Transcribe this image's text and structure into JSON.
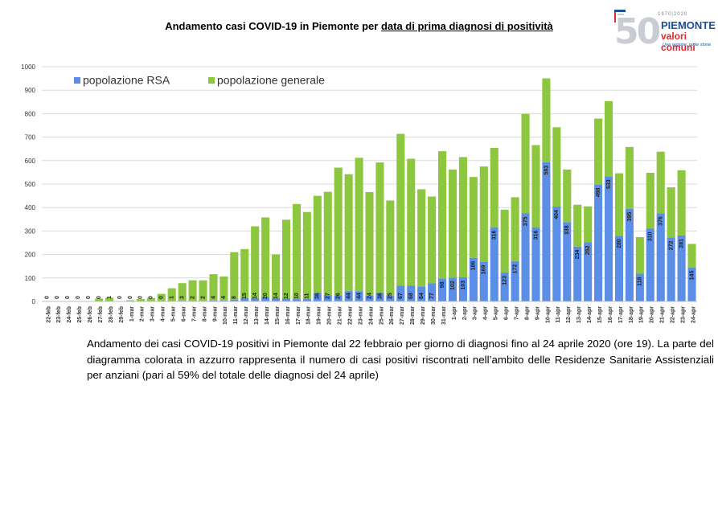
{
  "header": {
    "title_part1": "Andamento casi COVID-19 in Piemonte per ",
    "title_part2": "data di prima diagnosi di positività"
  },
  "logo": {
    "number": "50",
    "years": "1970|2020",
    "line1": "PIEMONTE",
    "line2": "valori comuni",
    "line3": "Una regione, tante storie"
  },
  "caption": "Andamento dei casi COVID-19 positivi in Piemonte dal 22 febbraio per giorno di diagnosi fino al 24 aprile 2020 (ore 19). La parte del diagramma colorata in azzurro rappresenta il numero di casi positivi riscontrati nell’ambito delle Residenze Sanitarie Assistenziali per anziani (pari al 59% del totale delle diagnosi del 24 aprile)",
  "chart_data": {
    "type": "bar",
    "stacked": true,
    "ylim": [
      0,
      1000
    ],
    "yticks": [
      0,
      100,
      200,
      300,
      400,
      500,
      600,
      700,
      800,
      900,
      1000
    ],
    "grid": true,
    "legend": "top-left",
    "colors": {
      "rsa": "#5b8ee6",
      "generale": "#8dc63f"
    },
    "categories": [
      "22-feb",
      "23-feb",
      "24-feb",
      "25-feb",
      "26-feb",
      "27-feb",
      "28-feb",
      "29-feb",
      "1-mar",
      "2-mar",
      "3-mar",
      "4-mar",
      "5-mar",
      "6-mar",
      "7-mar",
      "8-mar",
      "9-mar",
      "10-mar",
      "11-mar",
      "12-mar",
      "13-mar",
      "14-mar",
      "15-mar",
      "16-mar",
      "17-mar",
      "18-mar",
      "19-mar",
      "20-mar",
      "21-mar",
      "22-mar",
      "23-mar",
      "24-mar",
      "25-mar",
      "26-mar",
      "27-mar",
      "28-mar",
      "29-mar",
      "30-mar",
      "31-mar",
      "1-apr",
      "2-apr",
      "3-apr",
      "4-apr",
      "5-apr",
      "6-apr",
      "7-apr",
      "8-apr",
      "9-apr",
      "10-apr",
      "11-apr",
      "12-apr",
      "13-apr",
      "14-apr",
      "15-apr",
      "16-apr",
      "17-apr",
      "18-apr",
      "19-apr",
      "20-apr",
      "21-apr",
      "22-apr",
      "23-apr",
      "24-apr"
    ],
    "series": [
      {
        "name": "popolazione RSA",
        "values": [
          0,
          0,
          0,
          0,
          0,
          0,
          1,
          0,
          0,
          0,
          0,
          0,
          1,
          3,
          2,
          2,
          4,
          4,
          8,
          15,
          14,
          20,
          14,
          12,
          10,
          11,
          36,
          27,
          26,
          44,
          44,
          24,
          36,
          25,
          67,
          68,
          64,
          77,
          98,
          102,
          103,
          186,
          169,
          316,
          123,
          172,
          375,
          316,
          593,
          404,
          338,
          234,
          252,
          498,
          533,
          280,
          395,
          118,
          310,
          376,
          272,
          281,
          145
        ]
      },
      {
        "name": "popolazione generale",
        "values": [
          0,
          0,
          0,
          0,
          0,
          12,
          15,
          0,
          5,
          10,
          15,
          32,
          55,
          75,
          88,
          88,
          112,
          102,
          202,
          208,
          306,
          338,
          186,
          336,
          405,
          370,
          414,
          440,
          544,
          498,
          568,
          442,
          556,
          405,
          647,
          540,
          414,
          370,
          542,
          460,
          512,
          344,
          406,
          338,
          268,
          272,
          424,
          350,
          357,
          338,
          224,
          178,
          153,
          281,
          320,
          266,
          263,
          156,
          238,
          262,
          214,
          278,
          100
        ]
      }
    ]
  }
}
